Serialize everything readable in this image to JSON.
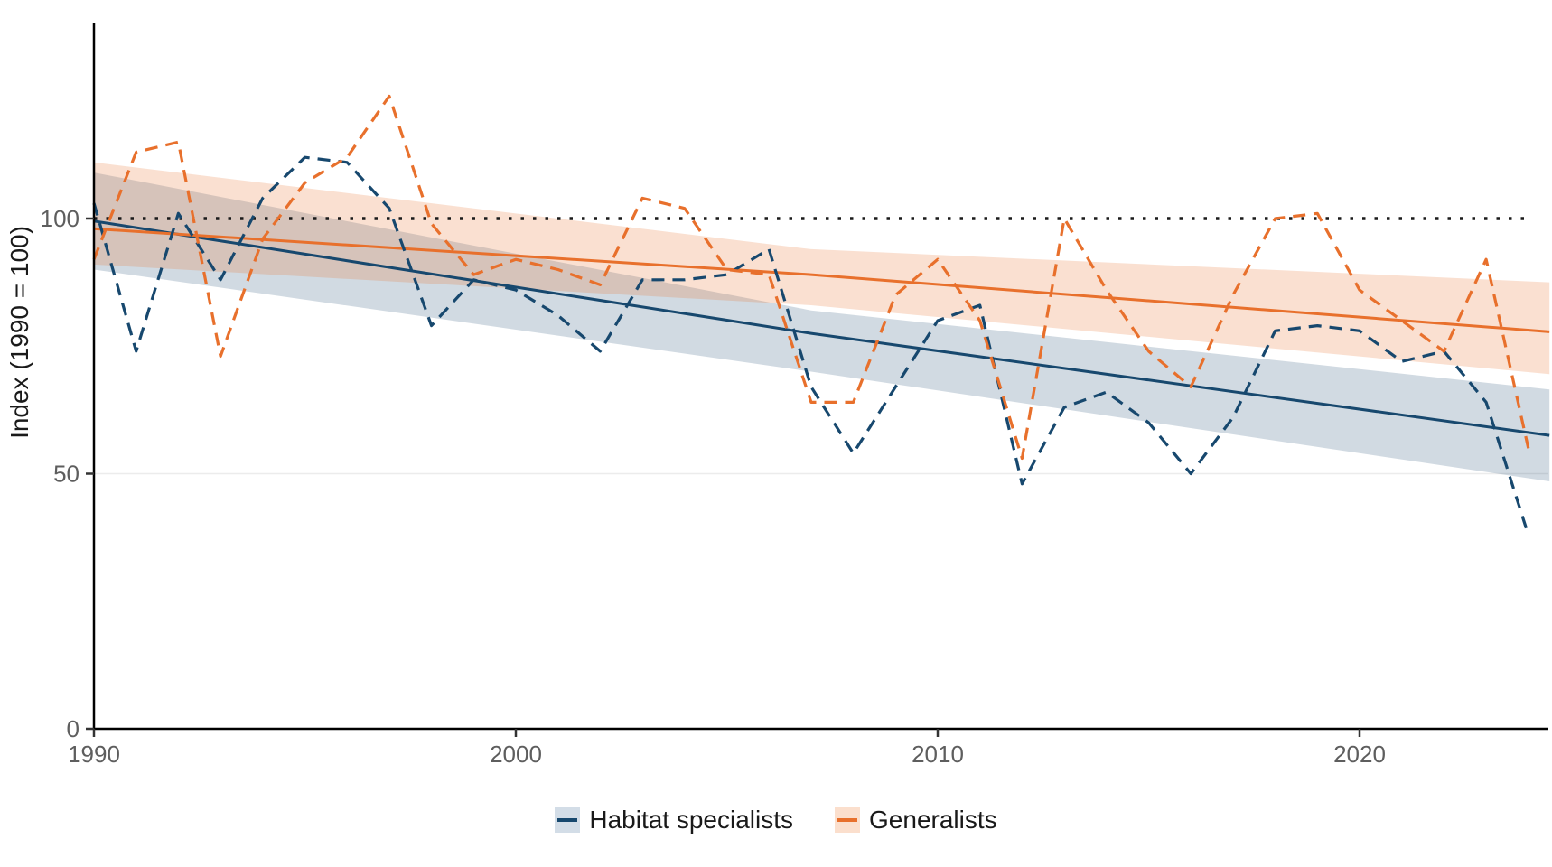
{
  "chart_data": {
    "type": "line",
    "title": "",
    "xlabel": "",
    "ylabel": "Index (1990 = 100)",
    "xlim": [
      1990,
      2024.5
    ],
    "ylim": [
      0,
      138
    ],
    "grid": "minimal-horizontal",
    "legend_position": "bottom-center",
    "x_ticks": [
      1990,
      2000,
      2010,
      2020
    ],
    "y_ticks": [
      0,
      50,
      100
    ],
    "reference_line": {
      "y": 100,
      "style": "dotted",
      "color": "#1a1a1a"
    },
    "x": [
      1990,
      1991,
      1992,
      1993,
      1994,
      1995,
      1996,
      1997,
      1998,
      1999,
      2000,
      2001,
      2002,
      2003,
      2004,
      2005,
      2006,
      2007,
      2008,
      2009,
      2010,
      2011,
      2012,
      2013,
      2014,
      2015,
      2016,
      2017,
      2018,
      2019,
      2020,
      2021,
      2022,
      2023,
      2024
    ],
    "series": [
      {
        "name": "Habitat specialists",
        "line_style": "dashed",
        "color": "#17486E",
        "ribbon_fill": "rgba(23,72,110,0.20)",
        "legend_key_fill": "#D3DDE7",
        "values": [
          103,
          74,
          101,
          88,
          104,
          112,
          111,
          102,
          79,
          88,
          86,
          81,
          74,
          88,
          88,
          89,
          94,
          67,
          54,
          67,
          80,
          83,
          48,
          63,
          66,
          60,
          50,
          61,
          78,
          79,
          78,
          72,
          74,
          64,
          38
        ],
        "trend": {
          "style": "solid",
          "points_x": [
            1990,
            2007,
            2024.5
          ],
          "points_y": [
            99.5,
            77.5,
            57.5
          ]
        },
        "ribbon": {
          "points_x": [
            1990,
            2007,
            2024.5
          ],
          "upper": [
            109,
            82,
            66.5
          ],
          "lower": [
            90,
            70,
            48.5
          ]
        }
      },
      {
        "name": "Generalists",
        "line_style": "dashed",
        "color": "#E8702C",
        "ribbon_fill": "rgba(232,112,44,0.22)",
        "legend_key_fill": "#FBDFCD",
        "values": [
          92,
          113,
          115,
          73,
          96,
          107,
          112,
          124,
          99,
          89,
          92,
          90,
          87,
          104,
          102,
          90,
          89,
          64,
          64,
          85,
          92,
          80,
          53,
          100,
          86,
          74,
          67,
          85,
          100,
          101,
          86,
          80,
          74,
          92,
          55
        ],
        "trend": {
          "style": "solid",
          "points_x": [
            1990,
            2007,
            2024.5
          ],
          "points_y": [
            98,
            89,
            77.8
          ]
        },
        "ribbon": {
          "points_x": [
            1990,
            2007,
            2024.5
          ],
          "upper": [
            111,
            94,
            87.5
          ],
          "lower": [
            91,
            83,
            69.5
          ]
        }
      }
    ],
    "axis": {
      "tick_label_color": "#5e5e5e",
      "axis_line_color": "#000000",
      "gridline_color": "#ececec"
    }
  }
}
